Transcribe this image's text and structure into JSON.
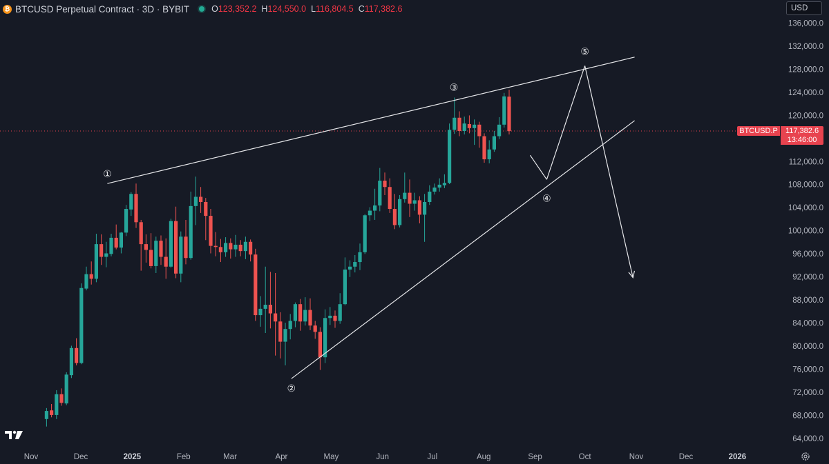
{
  "header": {
    "symbol_title": "BTCUSD Perpetual Contract · 3D · BYBIT",
    "coin_glyph": "₿",
    "ohlc": [
      {
        "key": "O",
        "value": "123,352.2"
      },
      {
        "key": "H",
        "value": "124,550.0"
      },
      {
        "key": "L",
        "value": "116,804.5"
      },
      {
        "key": "C",
        "value": "117,382.6"
      }
    ]
  },
  "currency_selector": {
    "value": "USD"
  },
  "price_tag": {
    "symbol": "BTCUSD.P",
    "price": "117,382.6",
    "countdown": "13:46:00"
  },
  "colors": {
    "background": "#161a25",
    "up": "#26a69a",
    "down": "#ef5350",
    "text": "#d1d4dc",
    "tag": "#e8434f"
  },
  "icons": {
    "settings": "gear-icon",
    "logo": "tradingview-logo-icon",
    "coin": "bitcoin-icon"
  },
  "chart_data": {
    "type": "candlestick",
    "price_axis": {
      "min": 62000,
      "max": 138000,
      "ticks": [
        "136,000.0",
        "132,000.0",
        "128,000.0",
        "124,000.0",
        "120,000.0",
        "116,000.0",
        "112,000.0",
        "108,000.0",
        "104,000.0",
        "100,000.0",
        "96,000.0",
        "92,000.0",
        "88,000.0",
        "84,000.0",
        "80,000.0",
        "76,000.0",
        "72,000.0",
        "68,000.0",
        "64,000.0"
      ],
      "tick_values": [
        136000,
        132000,
        128000,
        124000,
        120000,
        116000,
        112000,
        108000,
        104000,
        100000,
        96000,
        92000,
        88000,
        84000,
        80000,
        76000,
        72000,
        68000,
        64000
      ]
    },
    "time_axis": {
      "labels": [
        "Nov",
        "Dec",
        "2025",
        "Feb",
        "Mar",
        "Apr",
        "May",
        "Jun",
        "Jul",
        "Aug",
        "Sep",
        "Oct",
        "Nov",
        "Dec",
        "2026"
      ],
      "bold": [
        "2025",
        "2026"
      ],
      "dates": [
        "2024-11-01",
        "2024-12-01",
        "2025-01-01",
        "2025-02-01",
        "2025-03-01",
        "2025-04-01",
        "2025-05-01",
        "2025-06-01",
        "2025-07-01",
        "2025-08-01",
        "2025-09-01",
        "2025-10-01",
        "2025-11-01",
        "2025-12-01",
        "2026-01-01"
      ]
    },
    "last_price": 117382.6,
    "waves": [
      {
        "label": "①",
        "date": "2024-12-17",
        "price": 108300
      },
      {
        "label": "②",
        "date": "2025-04-07",
        "price": 74500
      },
      {
        "label": "③",
        "date": "2025-07-14",
        "price": 123200
      },
      {
        "label": "④",
        "date": "2025-09-08",
        "price": 109000
      },
      {
        "label": "⑤",
        "date": "2025-10-01",
        "price": 128700
      }
    ],
    "candles": [
      [
        67500,
        69400,
        66200,
        68900
      ],
      [
        69000,
        70100,
        67800,
        68200
      ],
      [
        68200,
        72500,
        67500,
        71800
      ],
      [
        71800,
        72800,
        69800,
        70300
      ],
      [
        70200,
        75600,
        69900,
        75200
      ],
      [
        75100,
        80200,
        74600,
        79800
      ],
      [
        79800,
        81500,
        76800,
        77200
      ],
      [
        77200,
        91000,
        77000,
        90200
      ],
      [
        90100,
        93900,
        89800,
        92600
      ],
      [
        92600,
        94800,
        90800,
        91800
      ],
      [
        91800,
        99600,
        91200,
        97800
      ],
      [
        97800,
        99500,
        94200,
        95600
      ],
      [
        95600,
        98200,
        93800,
        96200
      ],
      [
        96100,
        99600,
        95700,
        98900
      ],
      [
        98900,
        101200,
        96900,
        97200
      ],
      [
        97200,
        99900,
        96200,
        99800
      ],
      [
        99800,
        104600,
        99200,
        103900
      ],
      [
        103800,
        106800,
        102700,
        106500
      ],
      [
        106500,
        108300,
        100600,
        101600
      ],
      [
        101600,
        102000,
        93200,
        97800
      ],
      [
        97800,
        99500,
        94600,
        96800
      ],
      [
        96800,
        99700,
        93600,
        94000
      ],
      [
        94000,
        99100,
        92800,
        98400
      ],
      [
        98400,
        99300,
        94200,
        95600
      ],
      [
        95600,
        98800,
        91800,
        93900
      ],
      [
        93900,
        102200,
        93700,
        101800
      ],
      [
        101800,
        104300,
        91900,
        92700
      ],
      [
        92700,
        100000,
        91200,
        99100
      ],
      [
        99100,
        102000,
        94300,
        95400
      ],
      [
        95400,
        106900,
        95100,
        104400
      ],
      [
        104400,
        109500,
        101100,
        106000
      ],
      [
        106000,
        107700,
        103200,
        105100
      ],
      [
        105100,
        105800,
        98500,
        102700
      ],
      [
        102700,
        103900,
        96200,
        97500
      ],
      [
        97500,
        99900,
        95700,
        97300
      ],
      [
        97300,
        98700,
        94700,
        96400
      ],
      [
        96400,
        99000,
        95600,
        98000
      ],
      [
        98000,
        98800,
        95300,
        96900
      ],
      [
        96900,
        99400,
        95600,
        97700
      ],
      [
        97700,
        98500,
        95700,
        96600
      ],
      [
        96600,
        99100,
        95200,
        98200
      ],
      [
        98200,
        98600,
        94800,
        96000
      ],
      [
        96000,
        97000,
        84500,
        85500
      ],
      [
        85500,
        88800,
        83500,
        86600
      ],
      [
        86600,
        93900,
        82400,
        87300
      ],
      [
        87300,
        93000,
        83200,
        85800
      ],
      [
        85800,
        92800,
        78500,
        84400
      ],
      [
        84400,
        86000,
        78000,
        80900
      ],
      [
        80900,
        84200,
        76800,
        83100
      ],
      [
        83100,
        85700,
        81300,
        84500
      ],
      [
        84500,
        87700,
        83400,
        87400
      ],
      [
        87400,
        88300,
        82800,
        84400
      ],
      [
        84400,
        88600,
        83700,
        86400
      ],
      [
        86400,
        88400,
        82900,
        83700
      ],
      [
        83700,
        84500,
        81400,
        82600
      ],
      [
        82600,
        83400,
        76000,
        78200
      ],
      [
        78200,
        86500,
        77200,
        85000
      ],
      [
        85000,
        86900,
        83800,
        85400
      ],
      [
        85400,
        86300,
        83300,
        84500
      ],
      [
        84500,
        89300,
        84000,
        87400
      ],
      [
        87400,
        95500,
        87200,
        93400
      ],
      [
        93400,
        95000,
        92100,
        93900
      ],
      [
        93900,
        95900,
        92900,
        94700
      ],
      [
        94700,
        97900,
        93300,
        96400
      ],
      [
        96400,
        103000,
        96100,
        102800
      ],
      [
        102800,
        104200,
        101800,
        103600
      ],
      [
        103600,
        107400,
        102000,
        104500
      ],
      [
        104500,
        111000,
        103500,
        108800
      ],
      [
        108800,
        110200,
        106300,
        107700
      ],
      [
        107700,
        109200,
        103200,
        103900
      ],
      [
        103900,
        106500,
        100400,
        101100
      ],
      [
        101100,
        106300,
        100700,
        105600
      ],
      [
        105600,
        110200,
        105000,
        106700
      ],
      [
        106700,
        109000,
        102500,
        104800
      ],
      [
        104800,
        106700,
        103600,
        105400
      ],
      [
        105400,
        106100,
        101400,
        102900
      ],
      [
        102900,
        106500,
        98200,
        105100
      ],
      [
        105100,
        108000,
        104600,
        106900
      ],
      [
        106900,
        108300,
        106400,
        107600
      ],
      [
        107600,
        109200,
        106900,
        108100
      ],
      [
        108000,
        109900,
        107500,
        108400
      ],
      [
        108400,
        118700,
        108200,
        117600
      ],
      [
        117600,
        123200,
        116900,
        119700
      ],
      [
        119700,
        120800,
        116500,
        117400
      ],
      [
        117400,
        119900,
        116800,
        118700
      ],
      [
        118600,
        120100,
        117000,
        117900
      ],
      [
        117900,
        119400,
        115000,
        118500
      ],
      [
        118500,
        119000,
        114500,
        116500
      ],
      [
        116500,
        117000,
        111900,
        112500
      ],
      [
        112500,
        115800,
        111800,
        114200
      ],
      [
        114200,
        117400,
        113800,
        116500
      ],
      [
        116500,
        119800,
        116000,
        118500
      ],
      [
        118500,
        124000,
        118000,
        123400
      ],
      [
        123352,
        124550,
        116805,
        117383
      ]
    ],
    "drawn_lines": [
      {
        "from": {
          "date": "2024-12-17",
          "price": 108300
        },
        "to": {
          "date": "2025-10-31",
          "price": 130200
        }
      },
      {
        "from": {
          "date": "2025-04-07",
          "price": 74500
        },
        "to": {
          "date": "2025-10-31",
          "price": 119200
        }
      },
      {
        "from": {
          "date": "2025-08-29",
          "price": 113200
        },
        "to": {
          "date": "2025-09-08",
          "price": 109000
        }
      },
      {
        "from": {
          "date": "2025-09-08",
          "price": 109000
        },
        "to": {
          "date": "2025-10-01",
          "price": 128700
        }
      },
      {
        "from": {
          "date": "2025-10-01",
          "price": 128700
        },
        "to": {
          "date": "2025-10-30",
          "price": 92000
        },
        "arrow": true
      }
    ]
  }
}
